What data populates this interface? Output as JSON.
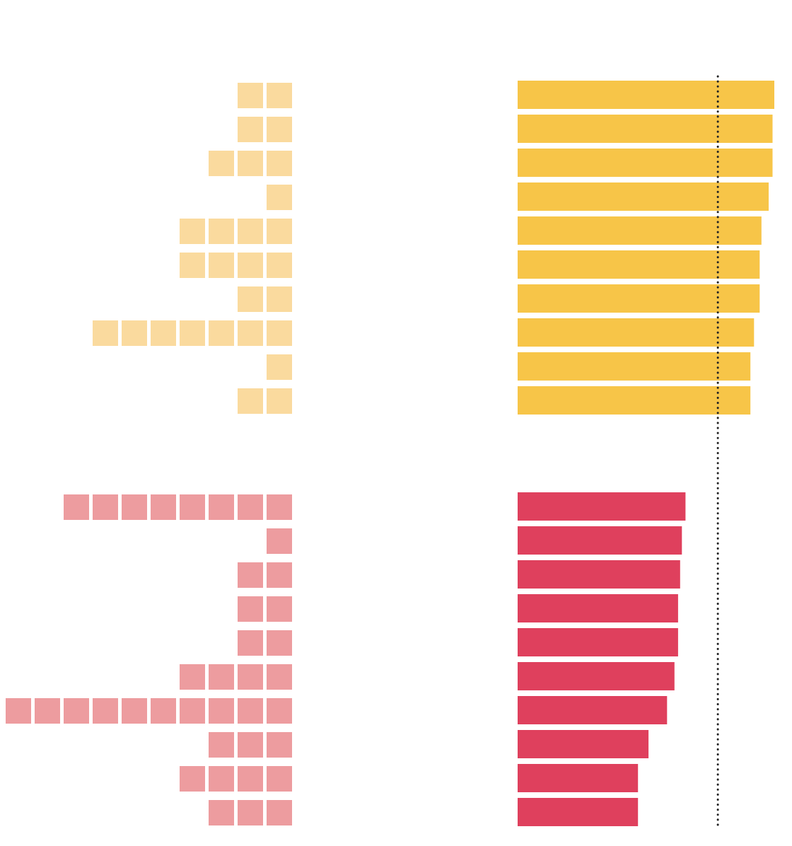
{
  "colors": {
    "top_squares": "#fada9e",
    "top_bars": "#f7c548",
    "bottom_squares": "#ed9c9f",
    "bottom_bars": "#df405d",
    "reference_line": "#222222"
  },
  "chart_data": {
    "type": "bar",
    "title": "",
    "xlabel": "",
    "ylabel": "",
    "grid": false,
    "legend": "none",
    "bar_xlim": [
      0,
      100
    ],
    "reference_line_value": 78,
    "groups": [
      {
        "squares": [
          2,
          2,
          3,
          1,
          4,
          4,
          2,
          7,
          1,
          2
        ],
        "bars": [
          100,
          99.3,
          99.3,
          97.8,
          95,
          94.3,
          94.3,
          92.1,
          90.7,
          90.7
        ]
      },
      {
        "squares": [
          8,
          1,
          2,
          2,
          2,
          4,
          10,
          3,
          4,
          3
        ],
        "bars": [
          65.4,
          64,
          63.3,
          62.5,
          62.5,
          61.1,
          58.2,
          51,
          46.9,
          46.9
        ]
      }
    ]
  }
}
